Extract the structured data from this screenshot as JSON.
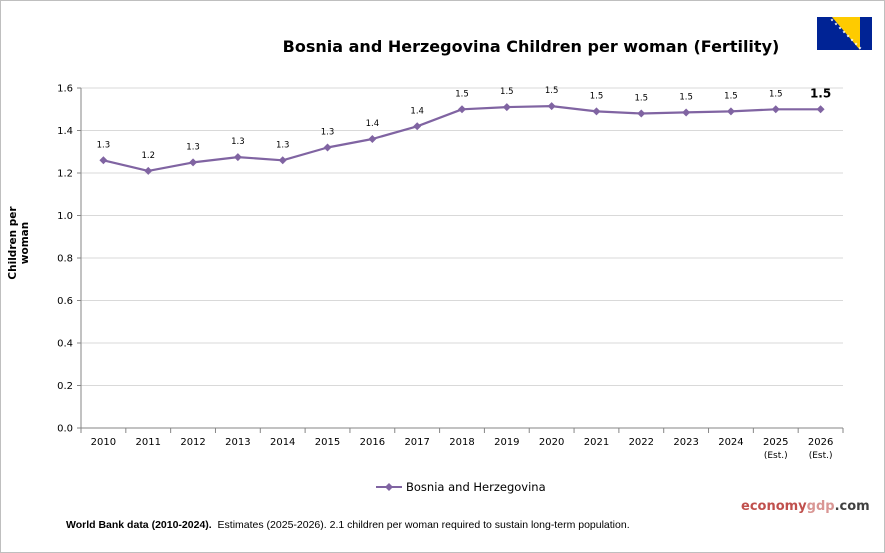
{
  "chart_data": {
    "type": "line",
    "title": "Bosnia and Herzegovina Children per woman (Fertility)",
    "xlabel": "",
    "ylabel": "Children per woman",
    "ylim": [
      0,
      1.6
    ],
    "ytick_step": 0.2,
    "ytick_labels": [
      "0.0",
      "0.2",
      "0.4",
      "0.6",
      "0.8",
      "1.0",
      "1.2",
      "1.4",
      "1.6"
    ],
    "grid": true,
    "legend": "bottom-center",
    "categories": [
      "2010",
      "2011",
      "2012",
      "2013",
      "2014",
      "2015",
      "2016",
      "2017",
      "2018",
      "2019",
      "2020",
      "2021",
      "2022",
      "2023",
      "2024",
      "2025",
      "2026"
    ],
    "category_sublabels": [
      "",
      "",
      "",
      "",
      "",
      "",
      "",
      "",
      "",
      "",
      "",
      "",
      "",
      "",
      "",
      "(Est.)",
      "(Est.)"
    ],
    "series": [
      {
        "name": "Bosnia and Herzegovina",
        "color": "#8064a2",
        "values": [
          1.26,
          1.21,
          1.25,
          1.275,
          1.26,
          1.32,
          1.36,
          1.42,
          1.5,
          1.51,
          1.515,
          1.49,
          1.48,
          1.485,
          1.49,
          1.5,
          1.5
        ],
        "data_labels": [
          "1.3",
          "1.2",
          "1.3",
          "1.3",
          "1.3",
          "1.3",
          "1.4",
          "1.4",
          "1.5",
          "1.5",
          "1.5",
          "1.5",
          "1.5",
          "1.5",
          "1.5",
          "1.5",
          "1.5"
        ]
      }
    ]
  },
  "footnote": {
    "bold": "World Bank data (2010-2024).",
    "rest": "Estimates  (2025-2026).  2.1 children per woman required to sustain long-term population."
  },
  "brand": {
    "part1": "economy",
    "part2": "gdp",
    "part3": ".com"
  },
  "flag": {
    "blue": "#002395",
    "yellow": "#fecb00",
    "stars": "#ffffff"
  }
}
